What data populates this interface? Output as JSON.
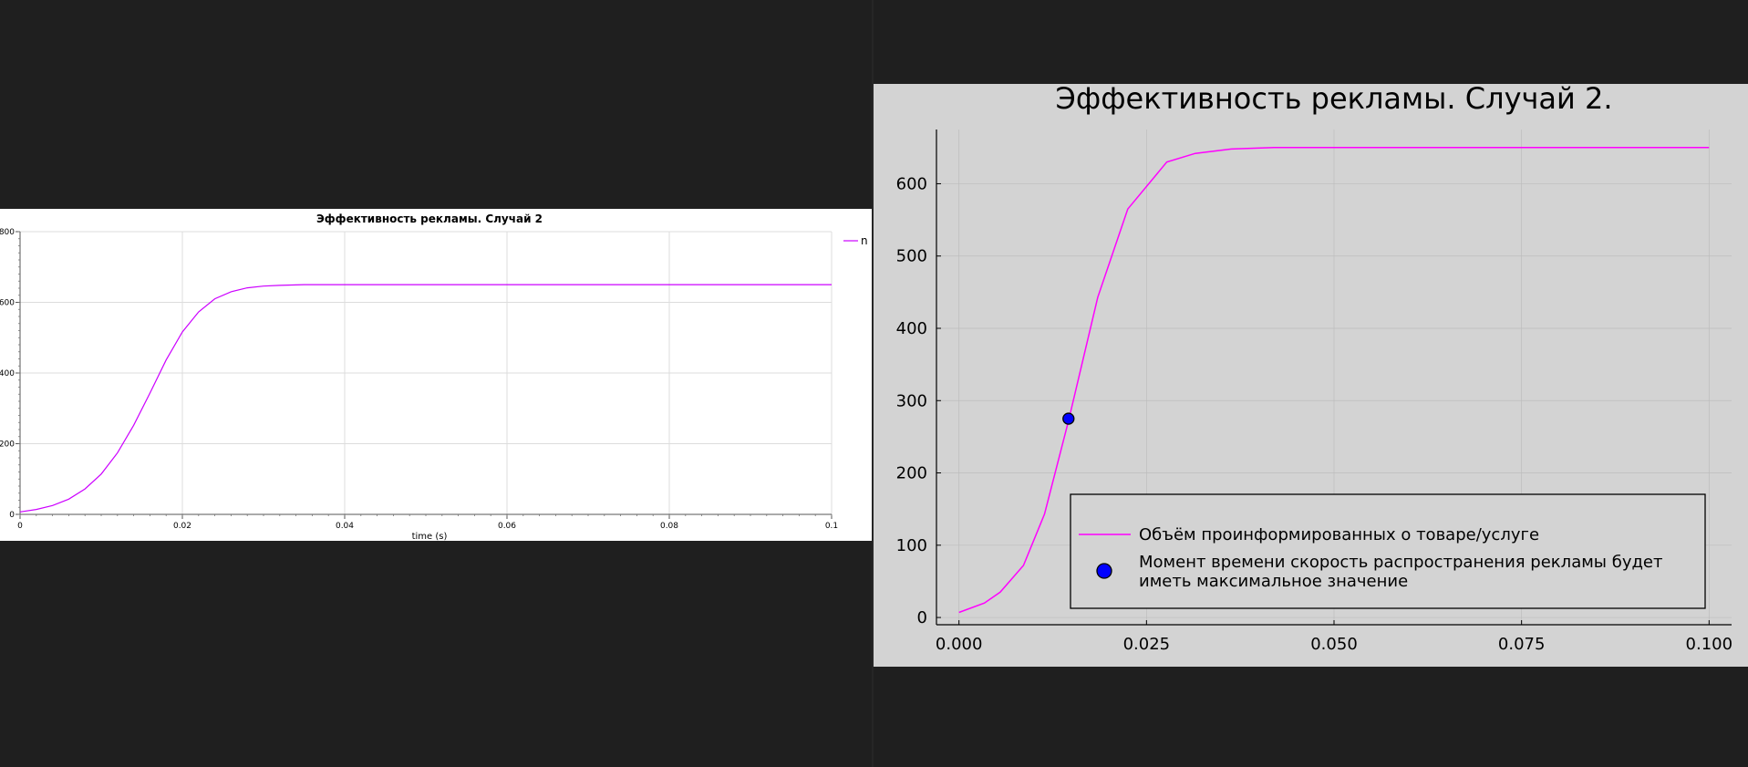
{
  "chart_data": [
    {
      "type": "line",
      "title": "Эффективность рекламы. Случай 2",
      "xlabel": "time (s)",
      "ylabel": "",
      "xlim": [
        0,
        0.1
      ],
      "ylim": [
        0,
        800
      ],
      "x_ticks": [
        "0",
        "0.02",
        "0.04",
        "0.06",
        "0.08",
        "0.1"
      ],
      "x_tick_values": [
        0,
        0.02,
        0.04,
        0.06,
        0.08,
        0.1
      ],
      "y_ticks": [
        "0",
        "200",
        "400",
        "600",
        "800"
      ],
      "y_tick_values": [
        0,
        200,
        400,
        600,
        800
      ],
      "grid": true,
      "legend_position": "top-right",
      "colors": {
        "line": "#cc00ff"
      },
      "series": [
        {
          "name": "n",
          "x": [
            0,
            0.002,
            0.004,
            0.006,
            0.008,
            0.01,
            0.012,
            0.014,
            0.016,
            0.018,
            0.02,
            0.022,
            0.024,
            0.026,
            0.028,
            0.03,
            0.032,
            0.035,
            0.04,
            0.05,
            0.06,
            0.07,
            0.08,
            0.09,
            0.1
          ],
          "y": [
            7,
            14,
            25,
            43,
            72,
            114,
            174,
            252,
            343,
            437,
            516,
            573,
            610,
            630,
            641,
            646,
            648,
            650,
            650,
            650,
            650,
            650,
            650,
            650,
            650
          ]
        }
      ]
    },
    {
      "type": "line",
      "title": "Эффективность рекламы. Случай 2.",
      "xlabel": "",
      "ylabel": "",
      "xlim": [
        -0.003,
        0.103
      ],
      "ylim": [
        -10,
        675
      ],
      "x_ticks": [
        "0.000",
        "0.025",
        "0.050",
        "0.075",
        "0.100"
      ],
      "x_tick_values": [
        0,
        0.025,
        0.05,
        0.075,
        0.1
      ],
      "y_ticks": [
        "0",
        "100",
        "200",
        "300",
        "400",
        "500",
        "600"
      ],
      "y_tick_values": [
        0,
        100,
        200,
        300,
        400,
        500,
        600
      ],
      "grid": true,
      "legend_position": "bottom-right",
      "colors": {
        "line": "#ff00ff",
        "marker": "#0000ff",
        "background": "#d3d3d3"
      },
      "series": [
        {
          "name": "Объём проинформированных о товаре/услуге",
          "x": [
            0,
            0.0034,
            0.0055,
            0.0086,
            0.0114,
            0.0146,
            0.0185,
            0.0225,
            0.0277,
            0.0315,
            0.0363,
            0.042,
            0.05,
            0.06,
            0.08,
            0.1
          ],
          "y": [
            7,
            20,
            35,
            72,
            143,
            272,
            443,
            565,
            630,
            642,
            648,
            650,
            650,
            650,
            650,
            650
          ]
        }
      ],
      "markers": [
        {
          "name": "Момент времени скорость распространения рекламы будет иметь максимальное значение",
          "x": 0.0146,
          "y": 275
        }
      ]
    }
  ]
}
